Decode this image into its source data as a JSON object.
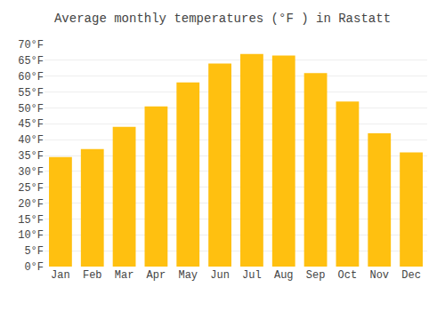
{
  "chart_data": {
    "type": "bar",
    "title": "Average monthly temperatures (°F ) in Rastatt",
    "categories": [
      "Jan",
      "Feb",
      "Mar",
      "Apr",
      "May",
      "Jun",
      "Jul",
      "Aug",
      "Sep",
      "Oct",
      "Nov",
      "Dec"
    ],
    "values": [
      34.5,
      37.0,
      44.0,
      50.5,
      58.0,
      64.0,
      67.0,
      66.5,
      61.0,
      52.0,
      42.0,
      36.0
    ],
    "color": "#FFC010",
    "ylim": [
      0,
      70
    ],
    "yticks": [
      {
        "value": 0,
        "label": "0°F"
      },
      {
        "value": 5,
        "label": "5°F"
      },
      {
        "value": 10,
        "label": "10°F"
      },
      {
        "value": 15,
        "label": "15°F"
      },
      {
        "value": 20,
        "label": "20°F"
      },
      {
        "value": 25,
        "label": "25°F"
      },
      {
        "value": 30,
        "label": "30°F"
      },
      {
        "value": 35,
        "label": "35°F"
      },
      {
        "value": 40,
        "label": "40°F"
      },
      {
        "value": 45,
        "label": "45°F"
      },
      {
        "value": 50,
        "label": "50°F"
      },
      {
        "value": 55,
        "label": "55°F"
      },
      {
        "value": 60,
        "label": "60°F"
      },
      {
        "value": 65,
        "label": "65°F"
      },
      {
        "value": 70,
        "label": "70°F"
      }
    ],
    "grid": true
  }
}
